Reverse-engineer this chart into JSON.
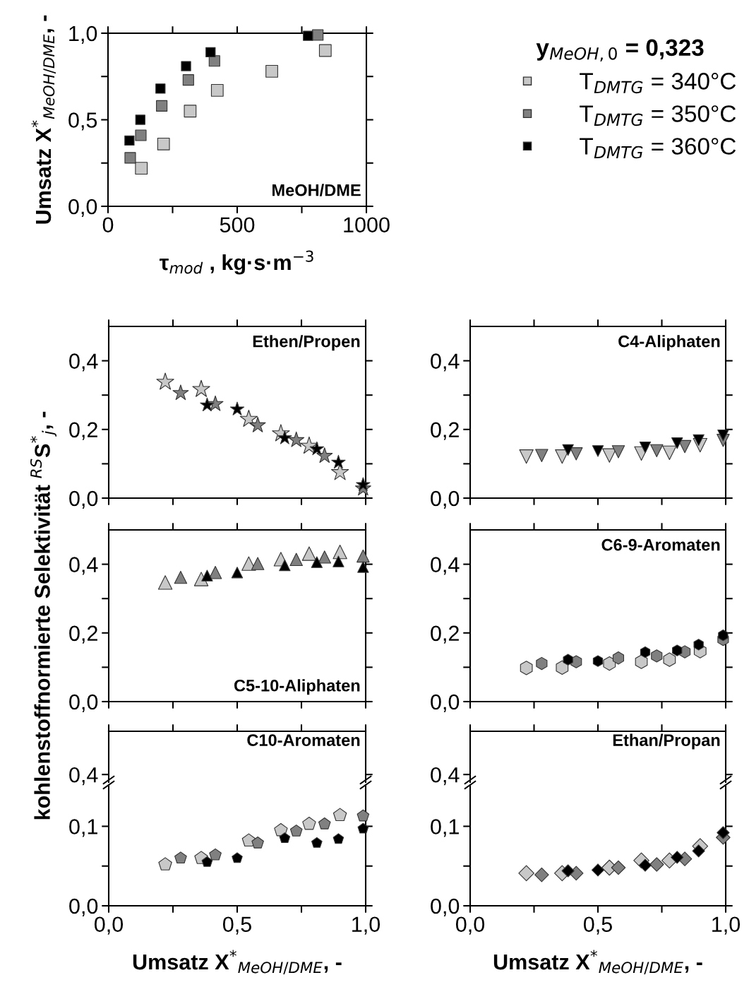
{
  "chart_data": [
    {
      "type": "scatter",
      "marker": "square",
      "xlabel": "τ$_{mod}$ , kg·s·m$^{−3}$",
      "ylabel": "Umsatz X$^{*}$$_{MeOH/DME}$, -",
      "annotations": [
        "MeOH/DME"
      ],
      "legend": "right",
      "legend_title": "y$_{MeOH,0}$ = 0,323",
      "xlim": [
        0,
        1000
      ],
      "xticks": [
        0,
        {
          "value": 250,
          "label": null
        },
        500,
        {
          "value": 750,
          "label": null
        },
        1000
      ],
      "ylim": [
        0,
        1
      ],
      "yticks": [
        {
          "value": 0,
          "label": "0,0"
        },
        {
          "value": 0.25,
          "label": null
        },
        {
          "value": 0.5,
          "label": "0,5"
        },
        {
          "value": 0.75,
          "label": null
        },
        {
          "value": 1,
          "label": "1,0"
        }
      ],
      "series": [
        {
          "name": "T$_{DMTG}$ = 340°C",
          "color": "#c8c8c8",
          "x": [
            129,
            215,
            318,
            423,
            634,
            841
          ],
          "values": [
            0.22,
            0.36,
            0.55,
            0.67,
            0.78,
            0.9
          ]
        },
        {
          "name": "T$_{DMTG}$ = 350°C",
          "color": "#808080",
          "x": [
            86,
            127,
            208,
            311,
            412,
            812
          ],
          "values": [
            0.28,
            0.41,
            0.58,
            0.73,
            0.84,
            0.99
          ]
        },
        {
          "name": "T$_{DMTG}$ = 360°C",
          "color": "#000000",
          "x": [
            83,
            125,
            203,
            302,
            397,
            774
          ],
          "values": [
            0.38,
            0.5,
            0.68,
            0.81,
            0.89,
            0.985
          ]
        }
      ]
    },
    {
      "type": "scatter",
      "marker": "star",
      "annotations": [
        "Ethen/Propen"
      ],
      "tick_labels": "y",
      "xlim": [
        0,
        1
      ],
      "xticks": [
        {
          "value": 0,
          "label": null
        },
        {
          "value": 0.25,
          "label": null
        },
        {
          "value": 0.5,
          "label": null
        },
        {
          "value": 0.75,
          "label": null
        },
        {
          "value": 1,
          "label": null
        }
      ],
      "ylim": [
        0,
        0.5
      ],
      "yticks": [
        {
          "value": 0,
          "label": "0,0"
        },
        {
          "value": 0.1,
          "label": null
        },
        {
          "value": 0.2,
          "label": "0,2"
        },
        {
          "value": 0.3,
          "label": null
        },
        {
          "value": 0.4,
          "label": "0,4"
        }
      ],
      "series": [
        {
          "color": "#c8c8c8",
          "x": [
            0.22,
            0.36,
            0.545,
            0.67,
            0.78,
            0.9
          ],
          "values": [
            0.338,
            0.317,
            0.23,
            0.188,
            0.152,
            0.075
          ]
        },
        {
          "color": "#808080",
          "x": [
            0.28,
            0.415,
            0.58,
            0.73,
            0.84,
            0.99
          ],
          "values": [
            0.306,
            0.274,
            0.212,
            0.169,
            0.123,
            0.028
          ]
        },
        {
          "color": "#000000",
          "x": [
            0.383,
            0.5,
            0.685,
            0.81,
            0.894,
            0.99
          ],
          "values": [
            0.271,
            0.259,
            0.175,
            0.143,
            0.104,
            0.039
          ]
        }
      ]
    },
    {
      "type": "scatter",
      "marker": "triangle-down",
      "annotations": [
        "C4-Aliphaten"
      ],
      "tick_labels": "y",
      "xlim": [
        0,
        1
      ],
      "xticks": [
        {
          "value": 0,
          "label": null
        },
        {
          "value": 0.25,
          "label": null
        },
        {
          "value": 0.5,
          "label": null
        },
        {
          "value": 0.75,
          "label": null
        },
        {
          "value": 1,
          "label": null
        }
      ],
      "ylim": [
        0,
        0.5
      ],
      "yticks": [
        {
          "value": 0,
          "label": "0,0"
        },
        {
          "value": 0.1,
          "label": null
        },
        {
          "value": 0.2,
          "label": "0,2"
        },
        {
          "value": 0.3,
          "label": null
        },
        {
          "value": 0.4,
          "label": "0,4"
        }
      ],
      "series": [
        {
          "color": "#c8c8c8",
          "x": [
            0.22,
            0.36,
            0.545,
            0.67,
            0.78,
            0.9
          ],
          "values": [
            0.121,
            0.121,
            0.124,
            0.13,
            0.132,
            0.154
          ]
        },
        {
          "color": "#808080",
          "x": [
            0.28,
            0.415,
            0.58,
            0.73,
            0.84,
            0.99
          ],
          "values": [
            0.124,
            0.129,
            0.135,
            0.138,
            0.15,
            0.168
          ]
        },
        {
          "color": "#000000",
          "x": [
            0.383,
            0.5,
            0.685,
            0.81,
            0.894,
            0.99
          ],
          "values": [
            0.14,
            0.137,
            0.148,
            0.16,
            0.169,
            0.183
          ]
        }
      ]
    },
    {
      "type": "scatter",
      "marker": "triangle",
      "annotations": [
        "C5-10-Aliphaten"
      ],
      "tick_labels": "y",
      "ylabel": "kohlenstoffnormierte Selektivität $^{RS}$S$^{*}$$_{j}$, -",
      "xlim": [
        0,
        1
      ],
      "xticks": [
        {
          "value": 0,
          "label": null
        },
        {
          "value": 0.25,
          "label": null
        },
        {
          "value": 0.5,
          "label": null
        },
        {
          "value": 0.75,
          "label": null
        },
        {
          "value": 1,
          "label": null
        }
      ],
      "ylim": [
        0,
        0.5
      ],
      "yticks": [
        {
          "value": 0,
          "label": "0,0"
        },
        {
          "value": 0.1,
          "label": null
        },
        {
          "value": 0.2,
          "label": "0,2"
        },
        {
          "value": 0.3,
          "label": null
        },
        {
          "value": 0.4,
          "label": "0,4"
        }
      ],
      "series": [
        {
          "color": "#c8c8c8",
          "x": [
            0.22,
            0.36,
            0.545,
            0.67,
            0.78,
            0.9
          ],
          "values": [
            0.347,
            0.357,
            0.402,
            0.415,
            0.431,
            0.436
          ]
        },
        {
          "color": "#808080",
          "x": [
            0.28,
            0.415,
            0.58,
            0.73,
            0.84,
            0.99
          ],
          "values": [
            0.362,
            0.376,
            0.402,
            0.414,
            0.421,
            0.424
          ]
        },
        {
          "color": "#000000",
          "x": [
            0.383,
            0.5,
            0.685,
            0.81,
            0.894,
            0.99
          ],
          "values": [
            0.367,
            0.376,
            0.397,
            0.406,
            0.408,
            0.392
          ]
        }
      ]
    },
    {
      "type": "scatter",
      "annotations": [
        "C6-9-Aromaten"
      ],
      "tick_labels": "y",
      "xlim": [
        0,
        1
      ],
      "xticks": [
        {
          "value": 0,
          "label": null
        },
        {
          "value": 0.25,
          "label": null
        },
        {
          "value": 0.5,
          "label": null
        },
        {
          "value": 0.75,
          "label": null
        },
        {
          "value": 1,
          "label": null
        }
      ],
      "ylim": [
        0,
        0.5
      ],
      "yticks": [
        {
          "value": 0,
          "label": "0,0"
        },
        {
          "value": 0.1,
          "label": null
        },
        {
          "value": 0.2,
          "label": "0,2"
        },
        {
          "value": 0.3,
          "label": null
        },
        {
          "value": 0.4,
          "label": "0,4"
        }
      ],
      "series": [
        {
          "color": "#c8c8c8",
          "x": [
            0.22,
            0.36,
            0.545,
            0.67,
            0.78,
            0.9
          ],
          "values": [
            0.098,
            0.099,
            0.111,
            0.116,
            0.122,
            0.147
          ]
        },
        {
          "color": "#808080",
          "x": [
            0.28,
            0.415,
            0.58,
            0.73,
            0.84,
            0.99
          ],
          "values": [
            0.111,
            0.116,
            0.127,
            0.133,
            0.145,
            0.181
          ]
        },
        {
          "color": "#000000",
          "x": [
            0.383,
            0.5,
            0.685,
            0.81,
            0.894,
            0.99
          ],
          "values": [
            0.122,
            0.118,
            0.144,
            0.149,
            0.166,
            0.193
          ]
        }
      ]
    },
    {
      "type": "other",
      "annotations": [
        "C10-Aromaten",
        "0,4"
      ]
    },
    {
      "type": "scatter",
      "xlabel": "Umsatz X$^{*}$$_{MeOH/DME}$, -",
      "xlim": [
        0,
        1
      ],
      "xticks": [
        {
          "value": 0,
          "label": "0,0"
        },
        {
          "value": 0.25,
          "label": null
        },
        {
          "value": 0.5,
          "label": "0,5"
        },
        {
          "value": 0.75,
          "label": null
        },
        {
          "value": 1,
          "label": "1,0"
        }
      ],
      "ylim": [
        0,
        0.152
      ],
      "yticks": [
        {
          "value": 0,
          "label": "0,0"
        },
        {
          "value": 0.05,
          "label": null
        },
        {
          "value": 0.1,
          "label": "0,1"
        }
      ],
      "series": [
        {
          "color": "#c8c8c8",
          "x": [
            0.22,
            0.36,
            0.545,
            0.67,
            0.78,
            0.9
          ],
          "values": [
            0.052,
            0.06,
            0.082,
            0.095,
            0.103,
            0.114
          ]
        },
        {
          "color": "#808080",
          "x": [
            0.28,
            0.415,
            0.58,
            0.73,
            0.84,
            0.99
          ],
          "values": [
            0.06,
            0.064,
            0.079,
            0.094,
            0.103,
            0.113
          ]
        },
        {
          "color": "#000000",
          "x": [
            0.383,
            0.5,
            0.685,
            0.81,
            0.894,
            0.99
          ],
          "values": [
            0.055,
            0.06,
            0.085,
            0.079,
            0.084,
            0.097
          ]
        }
      ]
    },
    {
      "type": "other",
      "annotations": [
        "Ethan/Propan",
        "0,4"
      ]
    },
    {
      "type": "scatter",
      "marker": "diamond",
      "xlabel": "Umsatz X$^{*}$$_{MeOH/DME}$, -",
      "xlim": [
        0,
        1
      ],
      "xticks": [
        {
          "value": 0,
          "label": "0,0"
        },
        {
          "value": 0.25,
          "label": null
        },
        {
          "value": 0.5,
          "label": "0,5"
        },
        {
          "value": 0.75,
          "label": null
        },
        {
          "value": 1,
          "label": "1,0"
        }
      ],
      "ylim": [
        0,
        0.152
      ],
      "yticks": [
        {
          "value": 0,
          "label": "0,0"
        },
        {
          "value": 0.05,
          "label": null
        },
        {
          "value": 0.1,
          "label": "0,1"
        }
      ],
      "series": [
        {
          "color": "#c8c8c8",
          "x": [
            0.22,
            0.36,
            0.545,
            0.67,
            0.78,
            0.9
          ],
          "values": [
            0.041,
            0.041,
            0.048,
            0.057,
            0.057,
            0.075
          ]
        },
        {
          "color": "#808080",
          "x": [
            0.28,
            0.415,
            0.58,
            0.73,
            0.84,
            0.99
          ],
          "values": [
            0.039,
            0.041,
            0.048,
            0.052,
            0.059,
            0.086
          ]
        },
        {
          "color": "#000000",
          "x": [
            0.383,
            0.5,
            0.685,
            0.81,
            0.894,
            0.99
          ],
          "values": [
            0.044,
            0.045,
            0.051,
            0.061,
            0.069,
            0.092
          ]
        }
      ]
    }
  ]
}
